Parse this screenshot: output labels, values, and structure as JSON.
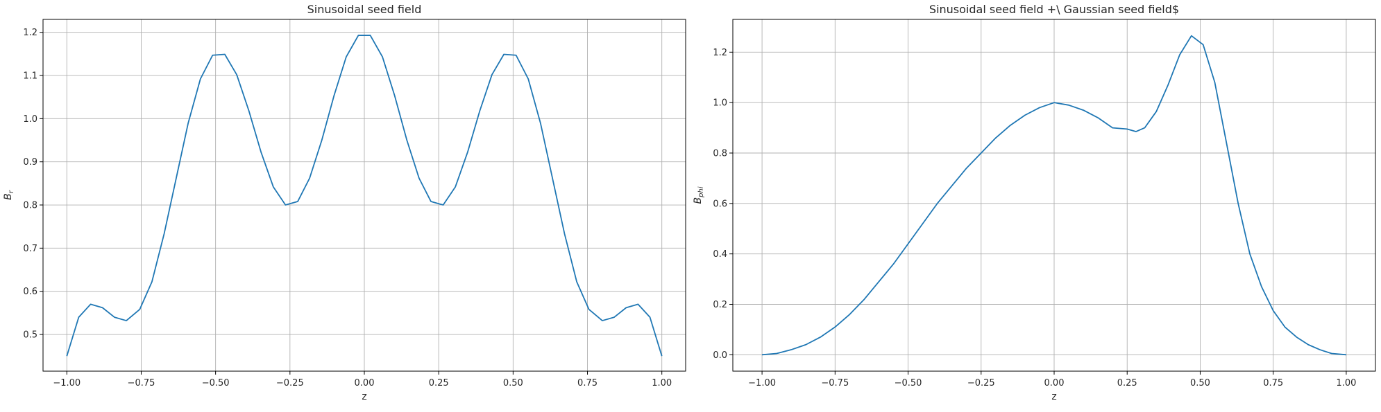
{
  "chart_data": [
    {
      "type": "line",
      "title": "Sinusoidal seed field",
      "xlabel": "z",
      "ylabel": "B",
      "ylabel_sub": "r",
      "xlim": [
        -1.08,
        1.08
      ],
      "ylim": [
        0.415,
        1.23
      ],
      "xticks": [
        -1.0,
        -0.75,
        -0.5,
        -0.25,
        0.0,
        0.25,
        0.5,
        0.75,
        1.0
      ],
      "xtick_labels": [
        "−1.00",
        "−0.75",
        "−0.50",
        "−0.25",
        "0.00",
        "0.25",
        "0.50",
        "0.75",
        "1.00"
      ],
      "yticks": [
        0.5,
        0.6,
        0.7,
        0.8,
        0.9,
        1.0,
        1.1,
        1.2
      ],
      "ytick_labels": [
        "0.5",
        "0.6",
        "0.7",
        "0.8",
        "0.9",
        "1.0",
        "1.1",
        "1.2"
      ],
      "grid": true,
      "color": "#1f77b4",
      "x": [
        -1.0,
        -0.96,
        -0.92,
        -0.88,
        -0.84,
        -0.8,
        -0.755,
        -0.714,
        -0.673,
        -0.633,
        -0.592,
        -0.551,
        -0.51,
        -0.469,
        -0.429,
        -0.388,
        -0.347,
        -0.306,
        -0.265,
        -0.224,
        -0.184,
        -0.143,
        -0.102,
        -0.061,
        -0.02,
        0.02,
        0.061,
        0.102,
        0.143,
        0.184,
        0.224,
        0.265,
        0.306,
        0.347,
        0.388,
        0.429,
        0.469,
        0.51,
        0.551,
        0.592,
        0.633,
        0.673,
        0.714,
        0.755,
        0.8,
        0.84,
        0.88,
        0.92,
        0.96,
        1.0
      ],
      "y": [
        0.45,
        0.54,
        0.57,
        0.562,
        0.54,
        0.532,
        0.558,
        0.622,
        0.733,
        0.86,
        0.99,
        1.092,
        1.147,
        1.149,
        1.102,
        1.018,
        0.922,
        0.842,
        0.8,
        0.808,
        0.862,
        0.95,
        1.053,
        1.143,
        1.193,
        1.193,
        1.143,
        1.053,
        0.95,
        0.862,
        0.808,
        0.8,
        0.842,
        0.922,
        1.018,
        1.102,
        1.149,
        1.147,
        1.092,
        0.99,
        0.86,
        0.733,
        0.622,
        0.558,
        0.532,
        0.54,
        0.562,
        0.57,
        0.54,
        0.45
      ]
    },
    {
      "type": "line",
      "title": "Sinusoidal seed field  +\\ Gaussian seed field$",
      "xlabel": "z",
      "ylabel": "B",
      "ylabel_sub": "phi",
      "xlim": [
        -1.1,
        1.1
      ],
      "ylim": [
        -0.065,
        1.33
      ],
      "xticks": [
        -1.0,
        -0.75,
        -0.5,
        -0.25,
        0.0,
        0.25,
        0.5,
        0.75,
        1.0
      ],
      "xtick_labels": [
        "−1.00",
        "−0.75",
        "−0.50",
        "−0.25",
        "0.00",
        "0.25",
        "0.50",
        "0.75",
        "1.00"
      ],
      "yticks": [
        0.0,
        0.2,
        0.4,
        0.6,
        0.8,
        1.0,
        1.2
      ],
      "ytick_labels": [
        "0.0",
        "0.2",
        "0.4",
        "0.6",
        "0.8",
        "1.0",
        "1.2"
      ],
      "grid": true,
      "color": "#1f77b4",
      "x": [
        -1.0,
        -0.95,
        -0.9,
        -0.85,
        -0.8,
        -0.75,
        -0.7,
        -0.65,
        -0.6,
        -0.55,
        -0.5,
        -0.45,
        -0.4,
        -0.35,
        -0.3,
        -0.25,
        -0.2,
        -0.15,
        -0.1,
        -0.05,
        0.0,
        0.05,
        0.1,
        0.15,
        0.2,
        0.25,
        0.28,
        0.31,
        0.35,
        0.39,
        0.43,
        0.47,
        0.51,
        0.55,
        0.59,
        0.63,
        0.67,
        0.71,
        0.75,
        0.79,
        0.83,
        0.87,
        0.91,
        0.95,
        1.0
      ],
      "y": [
        0.0,
        0.005,
        0.02,
        0.04,
        0.07,
        0.11,
        0.16,
        0.22,
        0.29,
        0.36,
        0.44,
        0.52,
        0.6,
        0.67,
        0.74,
        0.8,
        0.86,
        0.91,
        0.95,
        0.98,
        1.0,
        0.99,
        0.97,
        0.94,
        0.9,
        0.895,
        0.885,
        0.9,
        0.965,
        1.07,
        1.19,
        1.265,
        1.23,
        1.08,
        0.84,
        0.6,
        0.4,
        0.27,
        0.175,
        0.11,
        0.07,
        0.04,
        0.02,
        0.005,
        0.0
      ]
    }
  ]
}
